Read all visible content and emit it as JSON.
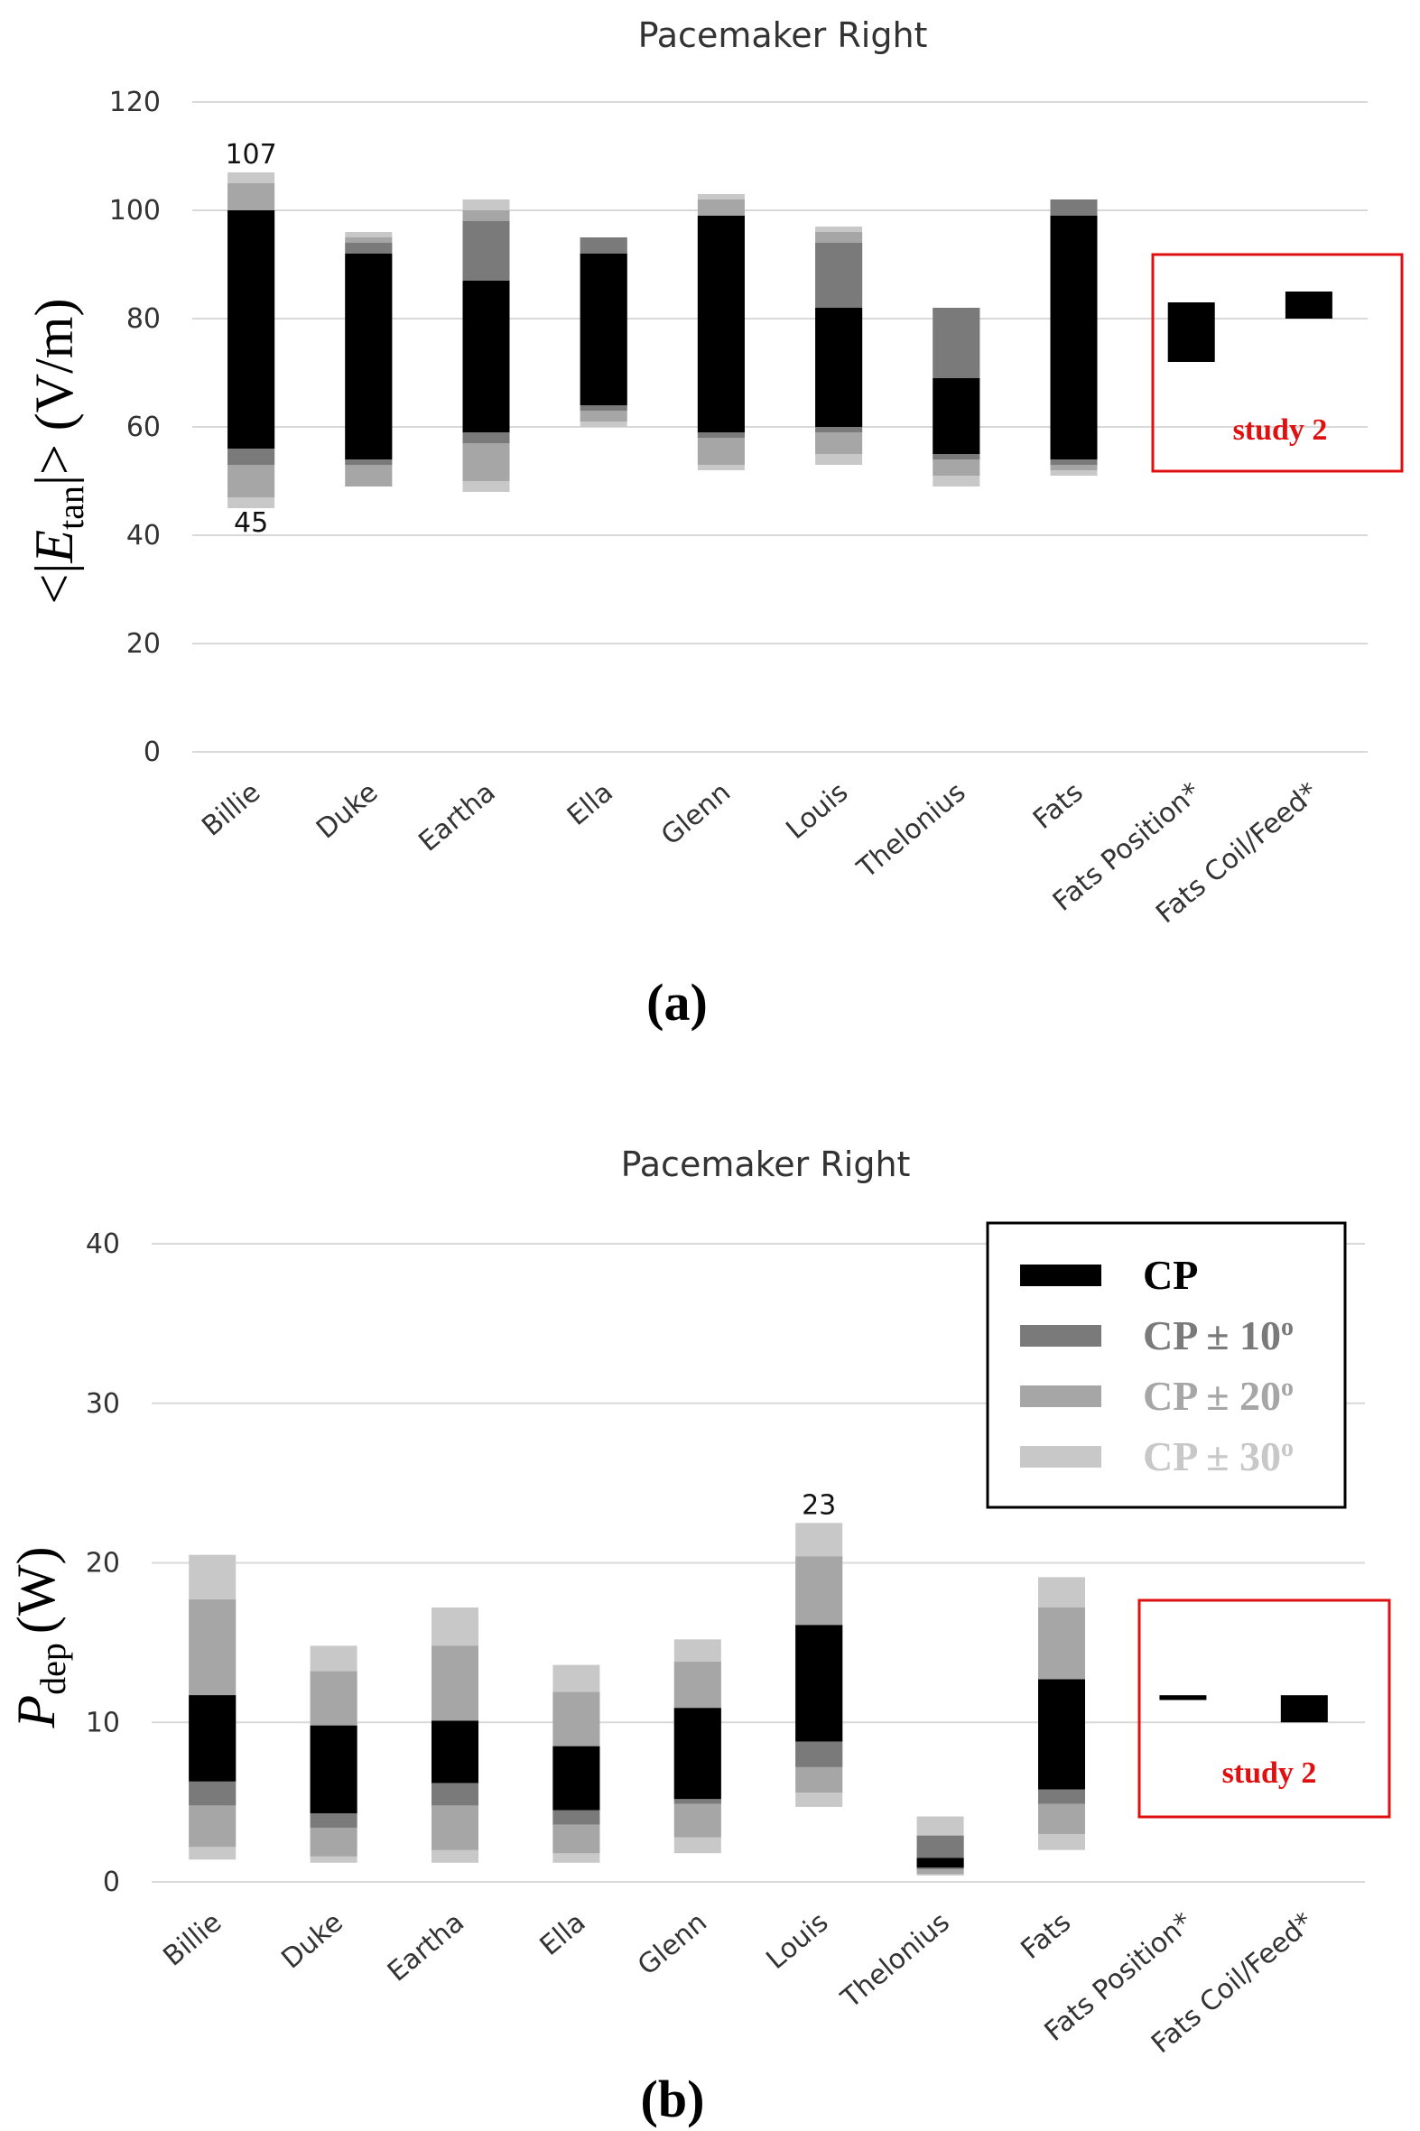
{
  "chart_data": [
    {
      "type": "bar",
      "panel_label": "(a)",
      "title": "Pacemaker Right",
      "ylabel_pre": "<|",
      "ylabel_var": "E",
      "ylabel_sub": "tan",
      "ylabel_post": "|> (V/m)",
      "ylim": [
        0,
        120
      ],
      "yticks": [
        "0",
        "20",
        "40",
        "60",
        "80",
        "100",
        "120"
      ],
      "categories": [
        "Billie",
        "Duke",
        "Eartha",
        "Ella",
        "Glenn",
        "Louis",
        "Thelonius",
        "Fats",
        "Fats Position*",
        "Fats Coil/Feed*"
      ],
      "series": [
        {
          "name": "CP",
          "color": "#000000",
          "ranges": [
            [
              56,
              100
            ],
            [
              54,
              92
            ],
            [
              59,
              87
            ],
            [
              64,
              92
            ],
            [
              59,
              99
            ],
            [
              60,
              82
            ],
            [
              55,
              69
            ],
            [
              54,
              99
            ],
            [
              72,
              83
            ],
            [
              80,
              85
            ]
          ]
        },
        {
          "name": "CP ± 10°",
          "color": "#7a7a7a",
          "ranges": [
            [
              53,
              100
            ],
            [
              53,
              94
            ],
            [
              57,
              98
            ],
            [
              63,
              95
            ],
            [
              58,
              99
            ],
            [
              59,
              94
            ],
            [
              54,
              82
            ],
            [
              53,
              102
            ],
            null,
            null
          ]
        },
        {
          "name": "CP ± 20°",
          "color": "#a6a6a6",
          "ranges": [
            [
              47,
              105
            ],
            [
              49,
              95
            ],
            [
              50,
              100
            ],
            [
              61,
              95
            ],
            [
              53,
              102
            ],
            [
              55,
              96
            ],
            [
              51,
              82
            ],
            [
              52,
              102
            ],
            null,
            null
          ]
        },
        {
          "name": "CP ± 30°",
          "color": "#c8c8c8",
          "ranges": [
            [
              45,
              107
            ],
            [
              49,
              96
            ],
            [
              48,
              102
            ],
            [
              60,
              95
            ],
            [
              52,
              103
            ],
            [
              53,
              97
            ],
            [
              49,
              82
            ],
            [
              51,
              102
            ],
            null,
            null
          ]
        }
      ],
      "annotations": [
        {
          "text": "107",
          "category": "Billie",
          "value": 107,
          "position": "above"
        },
        {
          "text": "45",
          "category": "Billie",
          "value": 45,
          "position": "below"
        }
      ],
      "study_label": "study 2"
    },
    {
      "type": "bar",
      "panel_label": "(b)",
      "title": "Pacemaker Right",
      "ylabel_var": "P",
      "ylabel_sub": "dep",
      "ylabel_post": "(W)",
      "ylim": [
        0,
        40
      ],
      "yticks": [
        "0",
        "10",
        "20",
        "30",
        "40"
      ],
      "categories": [
        "Billie",
        "Duke",
        "Eartha",
        "Ella",
        "Glenn",
        "Louis",
        "Thelonius",
        "Fats",
        "Fats Position*",
        "Fats Coil/Feed*"
      ],
      "series": [
        {
          "name": "CP",
          "color": "#000000",
          "ranges": [
            [
              6.3,
              11.7
            ],
            [
              4.3,
              9.8
            ],
            [
              6.2,
              10.1
            ],
            [
              4.5,
              8.5
            ],
            [
              5.2,
              10.9
            ],
            [
              8.8,
              16.1
            ],
            [
              0.9,
              1.5
            ],
            [
              5.8,
              12.7
            ],
            [
              11.4,
              11.7
            ],
            [
              10.0,
              11.7
            ]
          ]
        },
        {
          "name": "CP ± 10°",
          "color": "#7a7a7a",
          "ranges": [
            [
              4.8,
              11.7
            ],
            [
              3.4,
              9.8
            ],
            [
              4.8,
              10.1
            ],
            [
              3.6,
              8.5
            ],
            [
              4.9,
              10.9
            ],
            [
              7.2,
              16.1
            ],
            [
              0.8,
              2.9
            ],
            [
              4.9,
              12.7
            ],
            null,
            null
          ]
        },
        {
          "name": "CP ± 20°",
          "color": "#a6a6a6",
          "ranges": [
            [
              2.2,
              17.7
            ],
            [
              1.6,
              13.2
            ],
            [
              2.0,
              14.8
            ],
            [
              1.8,
              11.9
            ],
            [
              2.8,
              13.8
            ],
            [
              5.6,
              20.4
            ],
            [
              0.5,
              2.9
            ],
            [
              3.0,
              17.2
            ],
            null,
            null
          ]
        },
        {
          "name": "CP ± 30°",
          "color": "#c8c8c8",
          "ranges": [
            [
              1.4,
              20.5
            ],
            [
              1.2,
              14.8
            ],
            [
              1.2,
              17.2
            ],
            [
              1.2,
              13.6
            ],
            [
              1.8,
              15.2
            ],
            [
              4.7,
              22.5
            ],
            [
              0.4,
              4.1
            ],
            [
              2.0,
              19.1
            ],
            null,
            null
          ]
        }
      ],
      "annotations": [
        {
          "text": "23",
          "category": "Louis",
          "value": 22.5,
          "position": "above"
        }
      ],
      "legend": {
        "position": "top-right",
        "entries": [
          {
            "label": "CP",
            "color": "#000000",
            "text_color": "#000000"
          },
          {
            "label": "CP ± 10",
            "sup": "o",
            "color": "#7a7a7a",
            "text_color": "#7a7a7a"
          },
          {
            "label": "CP ± 20",
            "sup": "o",
            "color": "#a6a6a6",
            "text_color": "#a6a6a6"
          },
          {
            "label": "CP ± 30",
            "sup": "o",
            "color": "#c8c8c8",
            "text_color": "#c8c8c8"
          }
        ]
      },
      "study_label": "study 2"
    }
  ]
}
